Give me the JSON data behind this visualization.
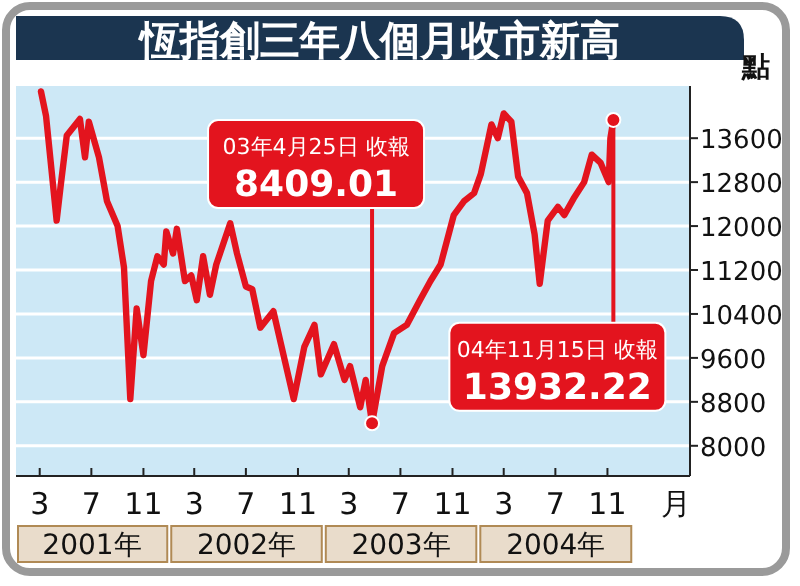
{
  "chart_data": {
    "type": "line",
    "title": "恆指創三年八個月收市新高",
    "xlabel": "月",
    "ylabel": "點",
    "grid": "y",
    "marker": "none",
    "line_style": "solid",
    "xlim": [
      "2001-01-04",
      "2005-05-15"
    ],
    "ylim": [
      7450,
      14550
    ],
    "xticks": [
      {
        "value": "2001-03-01",
        "label": "3"
      },
      {
        "value": "2001-07-01",
        "label": "7"
      },
      {
        "value": "2001-11-01",
        "label": "11"
      },
      {
        "value": "2002-03-01",
        "label": "3"
      },
      {
        "value": "2002-07-01",
        "label": "7"
      },
      {
        "value": "2002-11-01",
        "label": "11"
      },
      {
        "value": "2003-03-01",
        "label": "3"
      },
      {
        "value": "2003-07-01",
        "label": "7"
      },
      {
        "value": "2003-11-01",
        "label": "11"
      },
      {
        "value": "2004-03-01",
        "label": "3"
      },
      {
        "value": "2004-07-01",
        "label": "7"
      },
      {
        "value": "2004-11-01",
        "label": "11"
      }
    ],
    "yticks": [
      8000,
      8800,
      9600,
      10400,
      11200,
      12000,
      12800,
      13600
    ],
    "x": [
      "2001-03-04",
      "2001-03-16",
      "2001-04-10",
      "2001-04-19",
      "2001-05-04",
      "2001-06-04",
      "2001-06-16",
      "2001-06-25",
      "2001-07-19",
      "2001-08-07",
      "2001-09-01",
      "2001-09-16",
      "2001-10-01",
      "2001-10-16",
      "2001-11-01",
      "2001-11-19",
      "2001-12-04",
      "2001-12-19",
      "2001-12-25",
      "2002-01-10",
      "2002-01-19",
      "2002-02-07",
      "2002-02-22",
      "2002-03-07",
      "2002-03-22",
      "2002-04-07",
      "2002-04-22",
      "2002-05-25",
      "2002-06-10",
      "2002-07-01",
      "2002-07-16",
      "2002-08-04",
      "2002-09-04",
      "2002-09-22",
      "2002-10-22",
      "2002-11-16",
      "2002-12-10",
      "2002-12-25",
      "2003-01-25",
      "2003-02-19",
      "2003-03-04",
      "2003-03-28",
      "2003-04-10",
      "2003-04-25",
      "2003-05-19",
      "2003-06-16",
      "2003-07-16",
      "2003-08-16",
      "2003-09-10",
      "2003-10-04",
      "2003-11-04",
      "2003-11-28",
      "2003-12-22",
      "2004-01-07",
      "2004-02-01",
      "2004-02-16",
      "2004-03-01",
      "2004-03-19",
      "2004-04-04",
      "2004-04-25",
      "2004-05-13",
      "2004-05-25",
      "2004-06-13",
      "2004-07-07",
      "2004-07-22",
      "2004-08-13",
      "2004-09-07",
      "2004-09-25",
      "2004-10-16",
      "2004-11-04",
      "2004-11-08",
      "2004-11-15"
    ],
    "series": [
      {
        "color": "#e3141e",
        "values": [
          14450,
          14000,
          12100,
          12700,
          13650,
          13950,
          13250,
          13900,
          13250,
          12450,
          12000,
          11250,
          8850,
          10500,
          9650,
          11000,
          11450,
          11300,
          11900,
          11500,
          11950,
          11000,
          11100,
          10650,
          11450,
          10750,
          11300,
          12050,
          11500,
          10900,
          10850,
          10150,
          10450,
          9850,
          8850,
          9800,
          10200,
          9300,
          9850,
          9200,
          9450,
          8700,
          9200,
          8409.01,
          9450,
          10050,
          10200,
          10650,
          11000,
          11300,
          12200,
          12450,
          12600,
          12950,
          13850,
          13600,
          14050,
          13900,
          12900,
          12600,
          11850,
          10950,
          12100,
          12350,
          12200,
          12500,
          12800,
          13300,
          13150,
          12800,
          13600,
          13932.22
        ],
        "value_labels": [
          null,
          null,
          null,
          null,
          null,
          null,
          null,
          null,
          null,
          null,
          null,
          null,
          null,
          null,
          null,
          null,
          null,
          null,
          null,
          null,
          null,
          null,
          null,
          null,
          null,
          null,
          null,
          null,
          null,
          null,
          null,
          null,
          null,
          null,
          null,
          null,
          null,
          null,
          null,
          null,
          null,
          null,
          null,
          "8409.01",
          null,
          null,
          null,
          null,
          null,
          null,
          null,
          null,
          null,
          null,
          null,
          null,
          null,
          null,
          null,
          null,
          null,
          null,
          null,
          null,
          null,
          null,
          null,
          null,
          null,
          null,
          null,
          "13932.22"
        ]
      }
    ],
    "annotations": [
      {
        "text": "03年4月25日 收報",
        "x": "2003-04-25",
        "y": 8409.01
      },
      {
        "text": "04年11月15日 收報",
        "x": "2004-11-15",
        "y": 13932.22
      },
      "2001年",
      "2002年",
      "2003年",
      "2004年"
    ]
  }
}
